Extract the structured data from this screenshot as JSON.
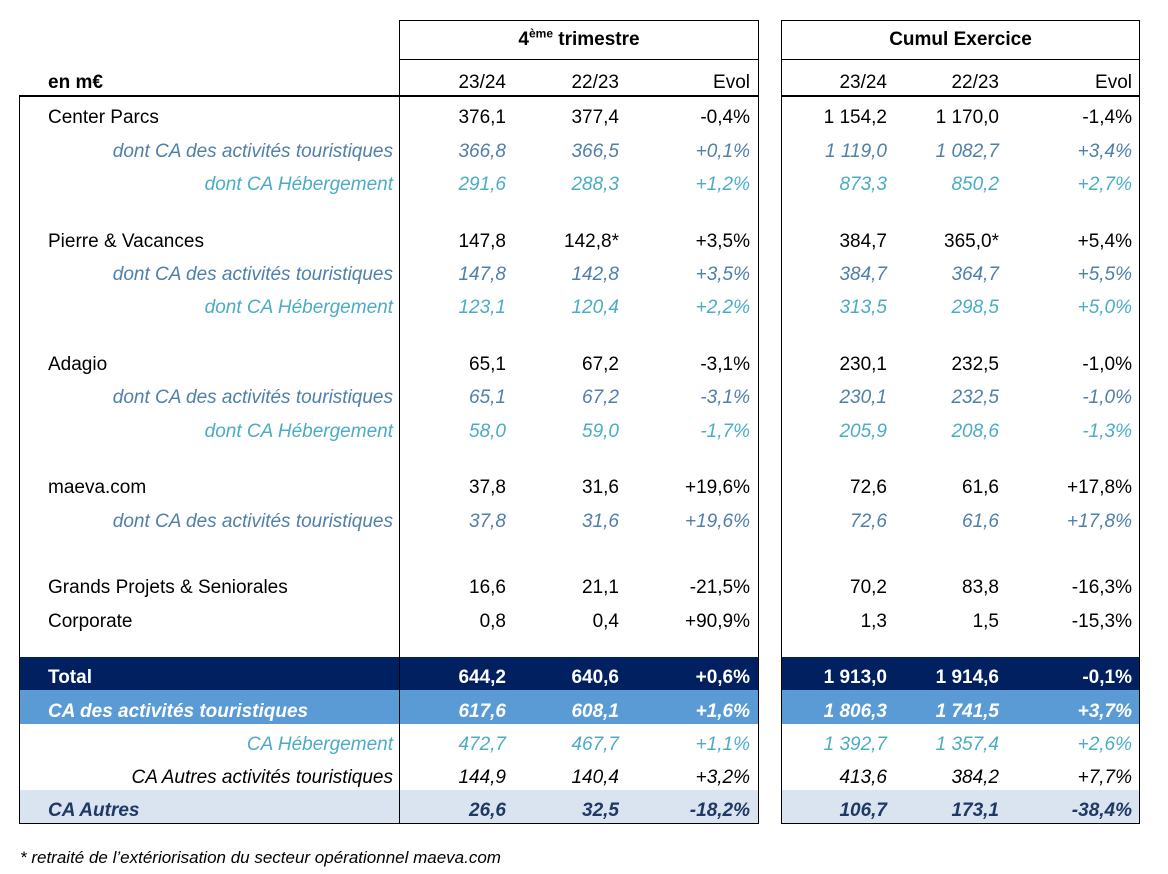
{
  "header": {
    "group1_title_main": "4",
    "group1_title_sup": "ème",
    "group1_title_rest": " trimestre",
    "group2_title": "Cumul Exercice",
    "unit": "en m€",
    "col_2324": "23/24",
    "col_2223": "22/23",
    "col_evol": "Evol"
  },
  "rows": [
    {
      "label": "Center Parcs",
      "v": [
        "376,1",
        "377,4",
        "-0,4%",
        "1 154,2",
        "1 170,0",
        "-1,4%"
      ]
    },
    {
      "label": "dont CA des activités touristiques",
      "v": [
        "366,8",
        "366,5",
        "+0,1%",
        "1 119,0",
        "1 082,7",
        "+3,4%"
      ]
    },
    {
      "label": "dont CA Hébergement",
      "v": [
        "291,6",
        "288,3",
        "+1,2%",
        "873,3",
        "850,2",
        "+2,7%"
      ]
    },
    {
      "label": "Pierre & Vacances",
      "v": [
        "147,8",
        "142,8*",
        "+3,5%",
        "384,7",
        "365,0*",
        "+5,4%"
      ]
    },
    {
      "label": "dont CA des activités touristiques",
      "v": [
        "147,8",
        "142,8",
        "+3,5%",
        "384,7",
        "364,7",
        "+5,5%"
      ]
    },
    {
      "label": "dont CA Hébergement",
      "v": [
        "123,1",
        "120,4",
        "+2,2%",
        "313,5",
        "298,5",
        "+5,0%"
      ]
    },
    {
      "label": "Adagio",
      "v": [
        "65,1",
        "67,2",
        "-3,1%",
        "230,1",
        "232,5",
        "-1,0%"
      ]
    },
    {
      "label": "dont CA des activités touristiques",
      "v": [
        "65,1",
        "67,2",
        "-3,1%",
        "230,1",
        "232,5",
        "-1,0%"
      ]
    },
    {
      "label": "dont CA Hébergement",
      "v": [
        "58,0",
        "59,0",
        "-1,7%",
        "205,9",
        "208,6",
        "-1,3%"
      ]
    },
    {
      "label": "maeva.com",
      "v": [
        "37,8",
        "31,6",
        "+19,6%",
        "72,6",
        "61,6",
        "+17,8%"
      ]
    },
    {
      "label": "dont CA des activités touristiques",
      "v": [
        "37,8",
        "31,6",
        "+19,6%",
        "72,6",
        "61,6",
        "+17,8%"
      ]
    },
    {
      "label": "Grands Projets & Seniorales",
      "v": [
        "16,6",
        "21,1",
        "-21,5%",
        "70,2",
        "83,8",
        "-16,3%"
      ]
    },
    {
      "label": "Corporate",
      "v": [
        "0,8",
        "0,4",
        "+90,9%",
        "1,3",
        "1,5",
        "-15,3%"
      ]
    },
    {
      "label": "Total",
      "v": [
        "644,2",
        "640,6",
        "+0,6%",
        "1 913,0",
        "1 914,6",
        "-0,1%"
      ]
    },
    {
      "label": "CA des activités touristiques",
      "v": [
        "617,6",
        "608,1",
        "+1,6%",
        "1 806,3",
        "1 741,5",
        "+3,7%"
      ]
    },
    {
      "label": "CA Hébergement",
      "v": [
        "472,7",
        "467,7",
        "+1,1%",
        "1 392,7",
        "1 357,4",
        "+2,6%"
      ]
    },
    {
      "label": "CA Autres activités touristiques",
      "v": [
        "144,9",
        "140,4",
        "+3,2%",
        "413,6",
        "384,2",
        "+7,7%"
      ]
    },
    {
      "label": "CA Autres",
      "v": [
        "26,6",
        "32,5",
        "-18,2%",
        "106,7",
        "173,1",
        "-38,4%"
      ]
    }
  ],
  "footnote": "* retraité de l’extériorisation du secteur opérationnel maeva.com",
  "colors": {
    "total_bg": "#002060",
    "tourist_bg": "#5b9bd5",
    "autres_bg": "#dae3f0",
    "tourist_text": "#4f7fab",
    "heb_text": "#4bacc6",
    "navy_text": "#1f3864"
  }
}
